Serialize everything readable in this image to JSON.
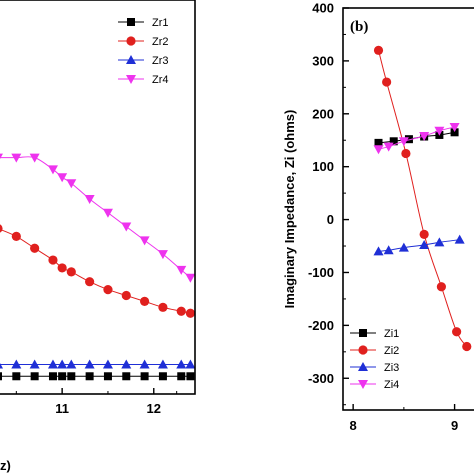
{
  "chart_data": [
    {
      "type": "line",
      "title": "",
      "xlabel": "z)",
      "ylabel": "",
      "xlim": [
        10.3,
        12.45
      ],
      "ylim": [
        0,
        100
      ],
      "x_ticks": [
        "11",
        "12"
      ],
      "grid": false,
      "legend_position": "top-right",
      "series": [
        {
          "name": "Zr1",
          "color": "#000000",
          "marker": "square",
          "x": [
            10.3,
            10.5,
            10.7,
            10.9,
            11.0,
            11.1,
            11.3,
            11.5,
            11.7,
            11.9,
            12.1,
            12.3,
            12.4
          ],
          "y": [
            4.5,
            4.5,
            4.5,
            4.5,
            4.5,
            4.5,
            4.5,
            4.5,
            4.5,
            4.5,
            4.5,
            4.5,
            4.5
          ]
        },
        {
          "name": "Zr2",
          "color": "#e0201e",
          "marker": "circle",
          "x": [
            10.3,
            10.5,
            10.7,
            10.9,
            11.0,
            11.1,
            11.3,
            11.5,
            11.7,
            11.9,
            12.1,
            12.3,
            12.4
          ],
          "y": [
            42,
            40,
            37,
            34,
            32,
            31,
            28.5,
            26.5,
            25,
            23.5,
            22,
            21,
            20.5
          ]
        },
        {
          "name": "Zr3",
          "color": "#1f2fd6",
          "marker": "triangle-up",
          "x": [
            10.3,
            10.5,
            10.7,
            10.9,
            11.0,
            11.1,
            11.3,
            11.5,
            11.7,
            11.9,
            12.1,
            12.3,
            12.4
          ],
          "y": [
            7.5,
            7.5,
            7.5,
            7.5,
            7.5,
            7.5,
            7.5,
            7.5,
            7.5,
            7.5,
            7.5,
            7.5,
            7.5
          ]
        },
        {
          "name": "Zr4",
          "color": "#ee33ee",
          "marker": "triangle-down",
          "x": [
            10.3,
            10.5,
            10.7,
            10.9,
            11.0,
            11.1,
            11.3,
            11.5,
            11.7,
            11.9,
            12.1,
            12.3,
            12.4
          ],
          "y": [
            60,
            60,
            60,
            57,
            55,
            53.5,
            49.5,
            46,
            42.5,
            39,
            35.5,
            31.5,
            29.5
          ]
        }
      ]
    },
    {
      "type": "line",
      "title": "",
      "panel_label": "(b)",
      "xlabel": "",
      "ylabel": "Imaginary Impedance, Zi (ohms)",
      "xlim": [
        7.9,
        9.28
      ],
      "ylim": [
        -360,
        400
      ],
      "x_ticks": [
        "8",
        "9"
      ],
      "y_ticks": [
        "400",
        "300",
        "200",
        "100",
        "0",
        "-100",
        "-200",
        "-300"
      ],
      "grid": false,
      "legend_position": "bottom-left",
      "series": [
        {
          "name": "Zi1",
          "color": "#000000",
          "marker": "square",
          "x": [
            8.25,
            8.4,
            8.55,
            8.7,
            8.85,
            9.0
          ],
          "y": [
            145,
            148,
            152,
            157,
            160,
            165
          ]
        },
        {
          "name": "Zi2",
          "color": "#e0201e",
          "marker": "circle",
          "x": [
            8.25,
            8.33,
            8.52,
            8.7,
            8.87,
            9.02,
            9.12
          ],
          "y": [
            320,
            260,
            125,
            -28,
            -127,
            -212,
            -240
          ]
        },
        {
          "name": "Zi3",
          "color": "#1f2fd6",
          "marker": "triangle-up",
          "x": [
            8.25,
            8.35,
            8.5,
            8.7,
            8.85,
            9.05
          ],
          "y": [
            -60,
            -58,
            -53,
            -48,
            -43,
            -38
          ]
        },
        {
          "name": "Zi4",
          "color": "#ee33ee",
          "marker": "triangle-down",
          "x": [
            8.25,
            8.35,
            8.5,
            8.7,
            8.85,
            9.0
          ],
          "y": [
            133,
            138,
            148,
            158,
            168,
            175
          ]
        }
      ]
    }
  ]
}
